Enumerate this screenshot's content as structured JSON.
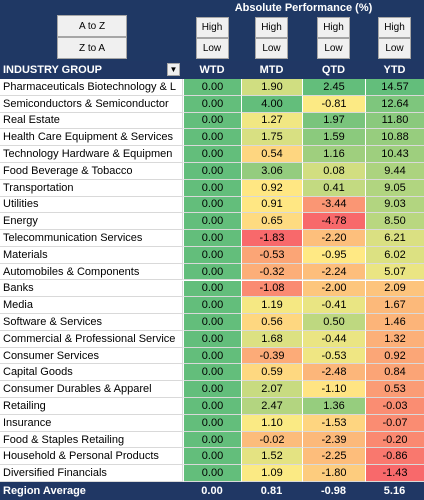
{
  "header": {
    "title": "Absolute Performance (%)",
    "sort_buttons": [
      "A to Z",
      "Z to A"
    ],
    "column_buttons": [
      [
        "High",
        "Low"
      ],
      [
        "High",
        "Low"
      ],
      [
        "High",
        "Low"
      ],
      [
        "High",
        "Low"
      ]
    ]
  },
  "table": {
    "columns": [
      "INDUSTRY GROUP",
      "WTD",
      "MTD",
      "QTD",
      "YTD"
    ],
    "rows": [
      [
        "Pharmaceuticals Biotechnology & L",
        "0.00",
        "1.90",
        "2.45",
        "14.57"
      ],
      [
        "Semiconductors & Semiconductor",
        "0.00",
        "4.00",
        "-0.81",
        "12.64"
      ],
      [
        "Real Estate",
        "0.00",
        "1.27",
        "1.97",
        "11.80"
      ],
      [
        "Health Care Equipment & Services",
        "0.00",
        "1.75",
        "1.59",
        "10.88"
      ],
      [
        "Technology Hardware & Equipmen",
        "0.00",
        "0.54",
        "1.16",
        "10.43"
      ],
      [
        "Food Beverage & Tobacco",
        "0.00",
        "3.06",
        "0.08",
        "9.44"
      ],
      [
        "Transportation",
        "0.00",
        "0.92",
        "0.41",
        "9.05"
      ],
      [
        "Utilities",
        "0.00",
        "0.91",
        "-3.44",
        "9.03"
      ],
      [
        "Energy",
        "0.00",
        "0.65",
        "-4.78",
        "8.50"
      ],
      [
        "Telecommunication Services",
        "0.00",
        "-1.83",
        "-2.20",
        "6.21"
      ],
      [
        "Materials",
        "0.00",
        "-0.53",
        "-0.95",
        "6.02"
      ],
      [
        "Automobiles & Components",
        "0.00",
        "-0.32",
        "-2.24",
        "5.07"
      ],
      [
        "Banks",
        "0.00",
        "-1.08",
        "-2.00",
        "2.09"
      ],
      [
        "Media",
        "0.00",
        "1.19",
        "-0.41",
        "1.67"
      ],
      [
        "Software & Services",
        "0.00",
        "0.56",
        "0.50",
        "1.46"
      ],
      [
        "Commercial & Professional Service",
        "0.00",
        "1.68",
        "-0.44",
        "1.32"
      ],
      [
        "Consumer Services",
        "0.00",
        "-0.39",
        "-0.53",
        "0.92"
      ],
      [
        "Capital Goods",
        "0.00",
        "0.59",
        "-2.48",
        "0.84"
      ],
      [
        "Consumer Durables & Apparel",
        "0.00",
        "2.07",
        "-1.10",
        "0.53"
      ],
      [
        "Retailing",
        "0.00",
        "2.47",
        "1.36",
        "-0.03"
      ],
      [
        "Insurance",
        "0.00",
        "1.10",
        "-1.53",
        "-0.07"
      ],
      [
        "Food & Staples Retailing",
        "0.00",
        "-0.02",
        "-2.39",
        "-0.20"
      ],
      [
        "Household & Personal Products",
        "0.00",
        "1.52",
        "-2.25",
        "-0.86"
      ],
      [
        "Diversified Financials",
        "0.00",
        "1.09",
        "-1.80",
        "-1.43"
      ]
    ],
    "footer": [
      "Region Average",
      "0.00",
      "0.81",
      "-0.98",
      "5.16"
    ]
  },
  "color_scale": {
    "low": "#f8696b",
    "mid": "#ffeb84",
    "high": "#63be7b"
  }
}
